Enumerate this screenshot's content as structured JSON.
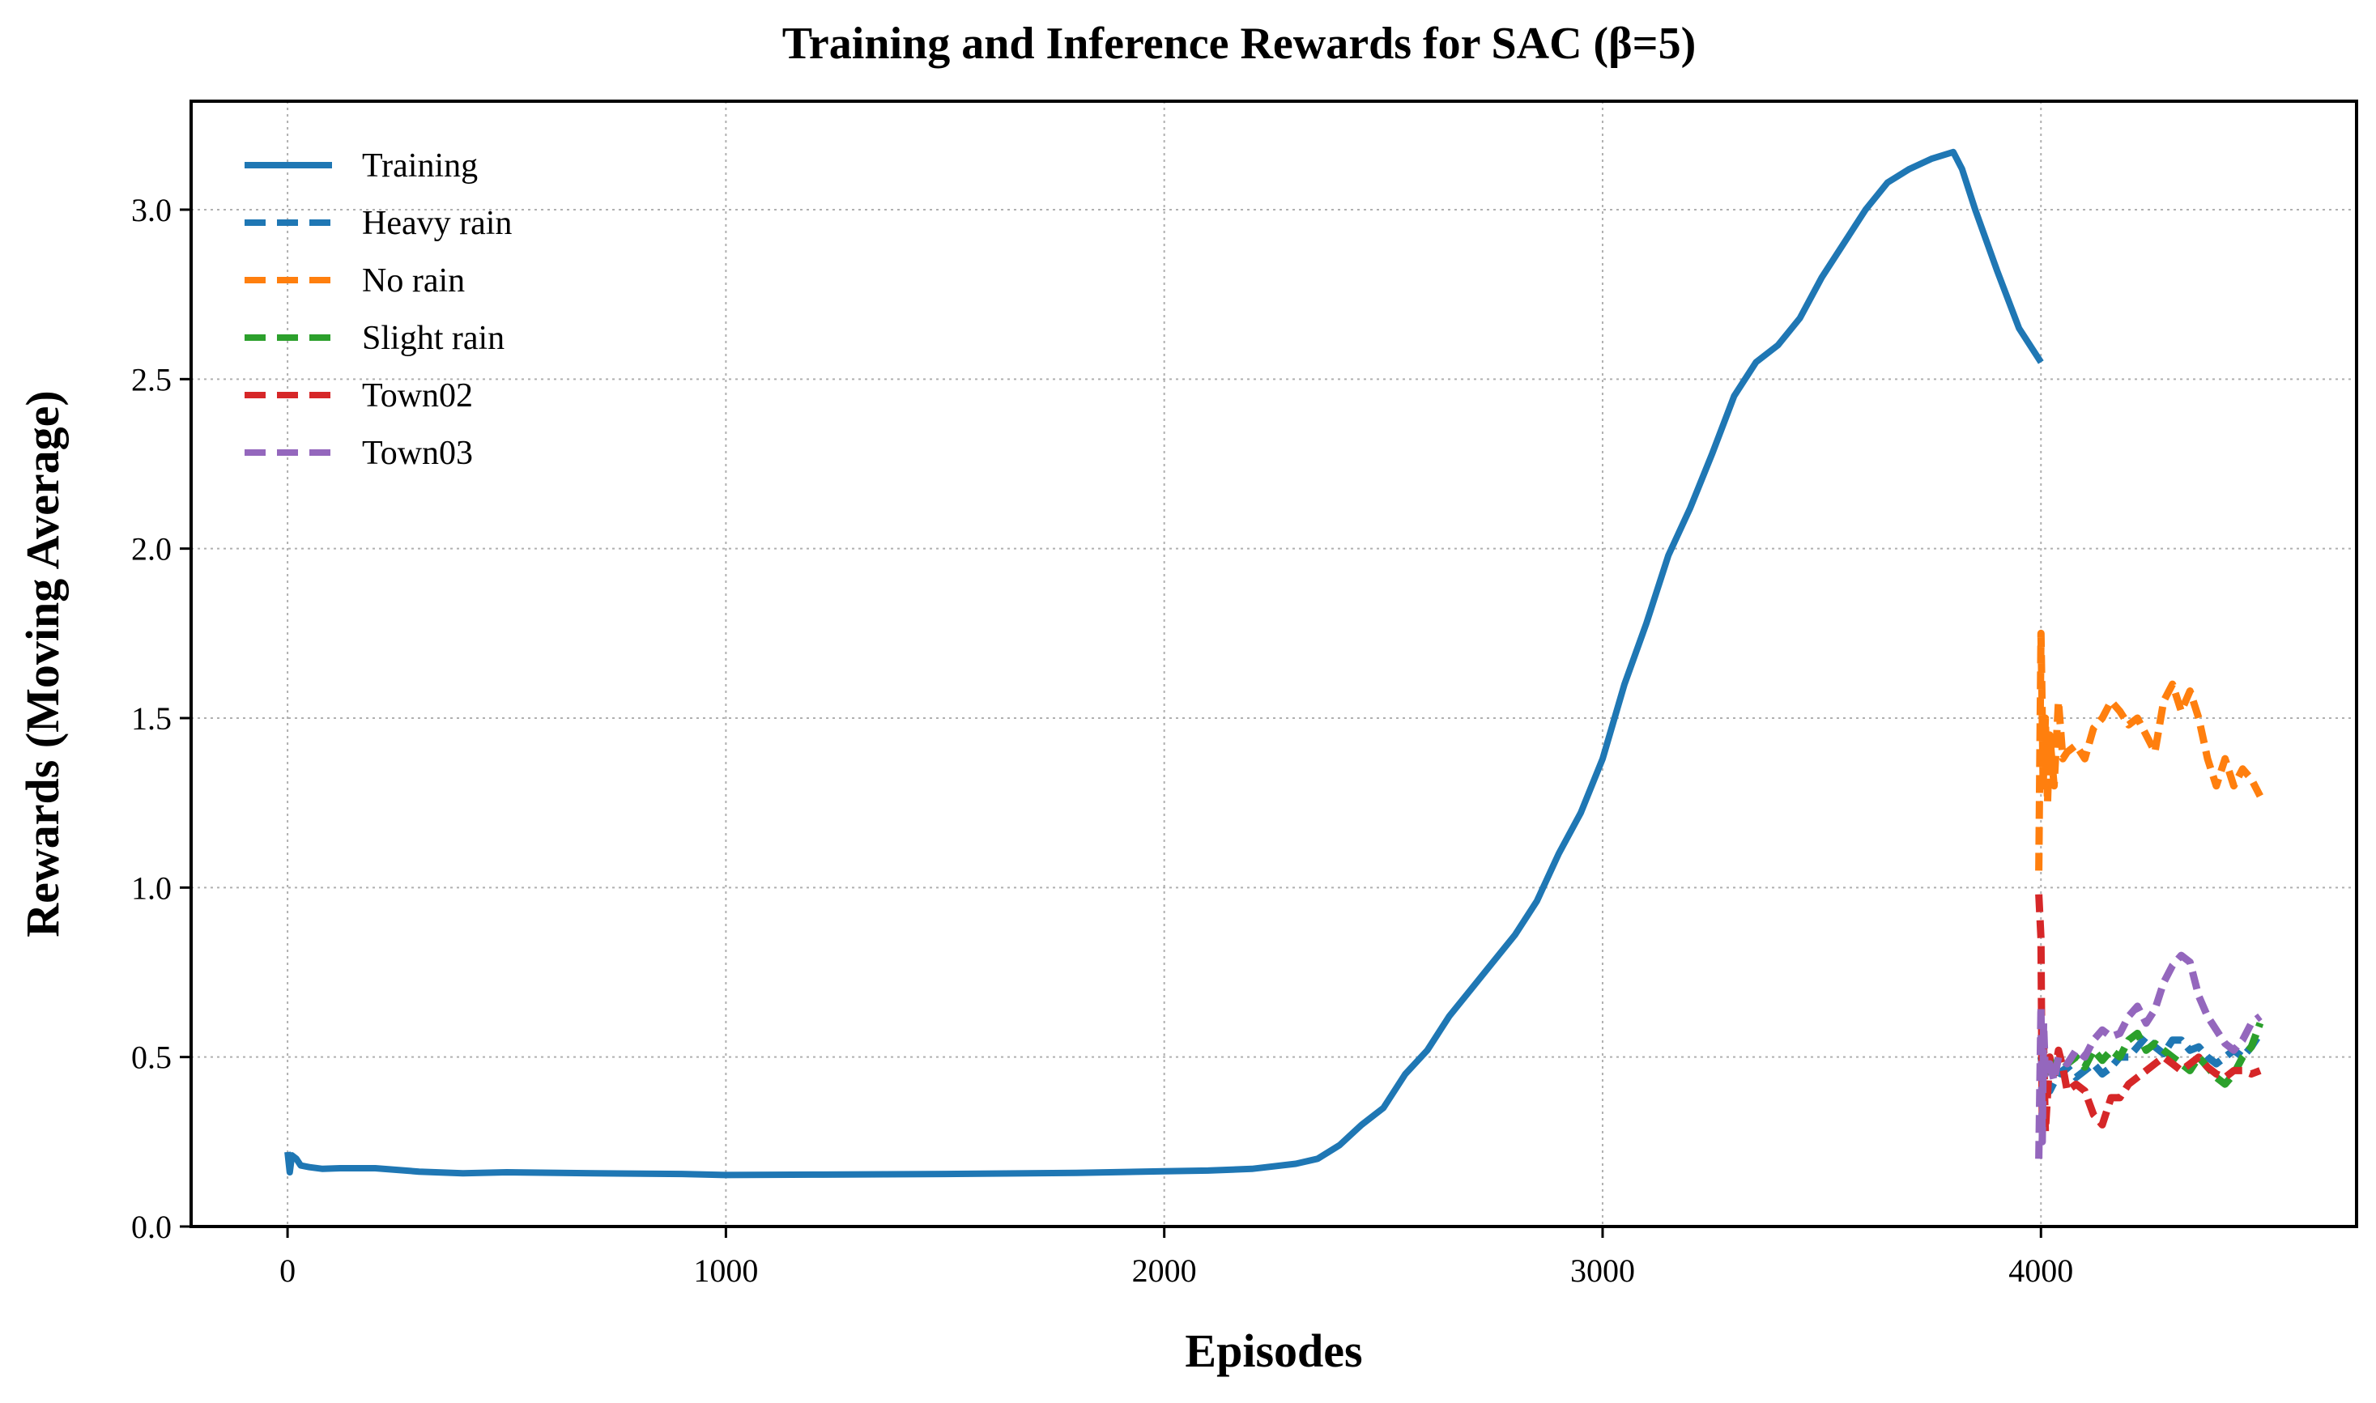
{
  "chart_data": {
    "type": "line",
    "title": "Training and Inference Rewards for SAC (β=5)",
    "xlabel": "Episodes",
    "ylabel": "Rewards (Moving Average)",
    "xlim": [
      -220,
      4720
    ],
    "ylim": [
      0.0,
      3.32
    ],
    "xticks": [
      0,
      1000,
      2000,
      3000,
      4000
    ],
    "xtick_labels": [
      "0",
      "1000",
      "2000",
      "3000",
      "4000"
    ],
    "yticks": [
      0.0,
      0.5,
      1.0,
      1.5,
      2.0,
      2.5,
      3.0
    ],
    "ytick_labels": [
      "0.0",
      "0.5",
      "1.0",
      "1.5",
      "2.0",
      "2.5",
      "3.0"
    ],
    "grid": true,
    "legend_position": "top-left",
    "series": [
      {
        "name": "Training",
        "color": "#1f77b4",
        "style": "solid",
        "x": [
          0,
          5,
          10,
          20,
          30,
          50,
          80,
          120,
          200,
          300,
          400,
          500,
          700,
          900,
          1000,
          1200,
          1500,
          1800,
          2000,
          2100,
          2200,
          2300,
          2350,
          2400,
          2450,
          2500,
          2550,
          2600,
          2650,
          2700,
          2750,
          2800,
          2850,
          2900,
          2950,
          3000,
          3050,
          3100,
          3150,
          3200,
          3250,
          3300,
          3350,
          3400,
          3450,
          3500,
          3550,
          3600,
          3650,
          3700,
          3750,
          3800,
          3820,
          3850,
          3900,
          3950,
          4000
        ],
        "y": [
          0.22,
          0.16,
          0.21,
          0.2,
          0.18,
          0.175,
          0.17,
          0.172,
          0.172,
          0.162,
          0.157,
          0.16,
          0.157,
          0.155,
          0.152,
          0.153,
          0.155,
          0.158,
          0.163,
          0.165,
          0.17,
          0.185,
          0.2,
          0.24,
          0.3,
          0.35,
          0.45,
          0.52,
          0.62,
          0.7,
          0.78,
          0.86,
          0.96,
          1.1,
          1.22,
          1.38,
          1.6,
          1.78,
          1.98,
          2.12,
          2.28,
          2.45,
          2.55,
          2.6,
          2.68,
          2.8,
          2.9,
          3.0,
          3.08,
          3.12,
          3.15,
          3.17,
          3.12,
          3.0,
          2.82,
          2.65,
          2.55
        ]
      },
      {
        "name": "Heavy rain",
        "color": "#1f77b4",
        "style": "dashed",
        "x": [
          4000,
          4010,
          4020,
          4040,
          4060,
          4080,
          4100,
          4120,
          4140,
          4160,
          4180,
          4200,
          4220,
          4240,
          4260,
          4280,
          4300,
          4320,
          4340,
          4360,
          4380,
          4400,
          4420,
          4440,
          4460,
          4480,
          4500
        ],
        "y": [
          0.5,
          0.43,
          0.4,
          0.45,
          0.47,
          0.44,
          0.46,
          0.48,
          0.45,
          0.47,
          0.5,
          0.5,
          0.53,
          0.56,
          0.53,
          0.51,
          0.55,
          0.55,
          0.52,
          0.53,
          0.5,
          0.48,
          0.5,
          0.52,
          0.5,
          0.53,
          0.57
        ]
      },
      {
        "name": "No rain",
        "color": "#ff7f0e",
        "style": "dashed",
        "x": [
          3995,
          4000,
          4002,
          4005,
          4010,
          4015,
          4020,
          4030,
          4040,
          4050,
          4060,
          4080,
          4100,
          4120,
          4140,
          4160,
          4180,
          4200,
          4220,
          4240,
          4260,
          4280,
          4300,
          4320,
          4340,
          4360,
          4380,
          4400,
          4420,
          4440,
          4460,
          4480,
          4500
        ],
        "y": [
          1.05,
          1.75,
          1.6,
          1.3,
          1.5,
          1.25,
          1.45,
          1.3,
          1.55,
          1.38,
          1.4,
          1.42,
          1.38,
          1.47,
          1.5,
          1.55,
          1.52,
          1.48,
          1.5,
          1.45,
          1.4,
          1.55,
          1.6,
          1.52,
          1.58,
          1.5,
          1.38,
          1.3,
          1.38,
          1.3,
          1.35,
          1.32,
          1.27
        ]
      },
      {
        "name": "Slight rain",
        "color": "#2ca02c",
        "style": "dashed",
        "x": [
          4000,
          4010,
          4020,
          4030,
          4040,
          4060,
          4080,
          4100,
          4120,
          4140,
          4160,
          4180,
          4200,
          4220,
          4240,
          4260,
          4280,
          4300,
          4320,
          4340,
          4360,
          4380,
          4400,
          4420,
          4440,
          4460,
          4480,
          4500
        ],
        "y": [
          0.48,
          0.45,
          0.5,
          0.44,
          0.5,
          0.48,
          0.5,
          0.47,
          0.52,
          0.49,
          0.52,
          0.5,
          0.55,
          0.57,
          0.52,
          0.54,
          0.52,
          0.5,
          0.48,
          0.46,
          0.5,
          0.47,
          0.44,
          0.42,
          0.45,
          0.5,
          0.53,
          0.6
        ]
      },
      {
        "name": "Town02",
        "color": "#d62728",
        "style": "dashed",
        "x": [
          3995,
          4000,
          4003,
          4006,
          4010,
          4020,
          4030,
          4040,
          4050,
          4060,
          4080,
          4100,
          4120,
          4140,
          4160,
          4180,
          4200,
          4220,
          4240,
          4260,
          4280,
          4300,
          4320,
          4340,
          4360,
          4380,
          4400,
          4420,
          4440,
          4460,
          4480,
          4500
        ],
        "y": [
          0.98,
          0.85,
          0.3,
          0.55,
          0.28,
          0.5,
          0.45,
          0.52,
          0.47,
          0.4,
          0.42,
          0.4,
          0.33,
          0.3,
          0.38,
          0.38,
          0.42,
          0.44,
          0.46,
          0.48,
          0.5,
          0.48,
          0.46,
          0.48,
          0.5,
          0.47,
          0.45,
          0.44,
          0.46,
          0.46,
          0.45,
          0.46
        ]
      },
      {
        "name": "Town03",
        "color": "#9467bd",
        "style": "dashed",
        "x": [
          3995,
          4000,
          4003,
          4006,
          4010,
          4020,
          4030,
          4040,
          4060,
          4080,
          4100,
          4120,
          4140,
          4160,
          4180,
          4200,
          4220,
          4240,
          4260,
          4280,
          4300,
          4320,
          4340,
          4360,
          4380,
          4400,
          4420,
          4440,
          4460,
          4480,
          4500
        ],
        "y": [
          0.2,
          0.65,
          0.25,
          0.6,
          0.45,
          0.48,
          0.43,
          0.5,
          0.48,
          0.52,
          0.5,
          0.55,
          0.58,
          0.56,
          0.57,
          0.62,
          0.65,
          0.6,
          0.64,
          0.72,
          0.77,
          0.8,
          0.78,
          0.68,
          0.62,
          0.58,
          0.54,
          0.52,
          0.55,
          0.6,
          0.62
        ]
      }
    ]
  }
}
